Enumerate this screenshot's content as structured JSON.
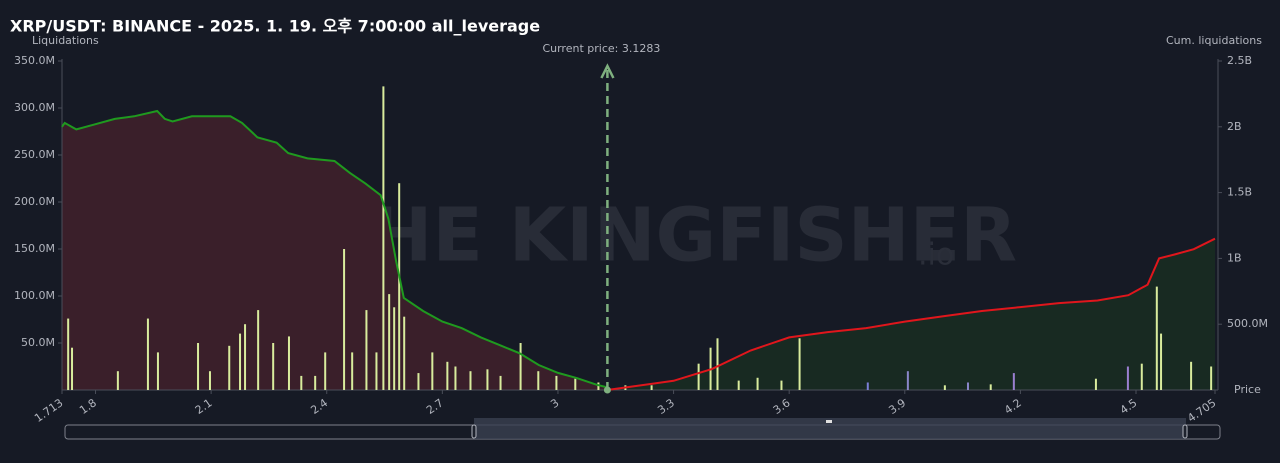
{
  "chart_data": {
    "type": "bar",
    "title": "XRP/USDT: BINANCE - 2025. 1. 19. 오후 7:00:00 all_leverage",
    "y_label": "Liquidations",
    "y2_label": "Cum. liquidations",
    "x_label": "Price",
    "watermark": "THE KINGFISHER",
    "watermark_suffix": ".io",
    "xlim": [
      1.713,
      4.705
    ],
    "xticks": [
      1.713,
      1.8,
      2.1,
      2.4,
      2.7,
      3,
      3.3,
      3.6,
      3.9,
      4.2,
      4.5,
      4.705
    ],
    "ylim": [
      0,
      350000000
    ],
    "yticks": [
      {
        "value": 50000000,
        "label": "50.0M"
      },
      {
        "value": 100000000,
        "label": "100.0M"
      },
      {
        "value": 150000000,
        "label": "150.0M"
      },
      {
        "value": 200000000,
        "label": "200.0M"
      },
      {
        "value": 250000000,
        "label": "250.0M"
      },
      {
        "value": 300000000,
        "label": "300.0M"
      },
      {
        "value": 350000000,
        "label": "350.0M"
      }
    ],
    "y2lim": [
      0,
      2500000000
    ],
    "y2ticks": [
      {
        "value": 500000000,
        "label": "500.0M"
      },
      {
        "value": 1000000000,
        "label": "1B"
      },
      {
        "value": 1500000000,
        "label": "1.5B"
      },
      {
        "value": 2000000000,
        "label": "2B"
      },
      {
        "value": 2500000000,
        "label": "2.5B"
      }
    ],
    "current_price": {
      "value": 3.1283,
      "label": "Current price: 3.1283",
      "color": "#7fb07f"
    },
    "bars": {
      "x": [
        1.729,
        1.739,
        1.858,
        1.936,
        1.962,
        2.066,
        2.097,
        2.147,
        2.175,
        2.188,
        2.222,
        2.261,
        2.302,
        2.334,
        2.37,
        2.396,
        2.445,
        2.466,
        2.503,
        2.529,
        2.547,
        2.562,
        2.575,
        2.588,
        2.601,
        2.638,
        2.674,
        2.713,
        2.734,
        2.773,
        2.817,
        2.851,
        2.903,
        2.949,
        2.996,
        3.045,
        3.105,
        3.175,
        3.243,
        3.365,
        3.396,
        3.414,
        3.469,
        3.518,
        3.58,
        3.627,
        3.804,
        3.908,
        4.004,
        4.064,
        4.123,
        4.183,
        4.396,
        4.479,
        4.515,
        4.554,
        4.565,
        4.643,
        4.695
      ],
      "values": [
        76000000,
        45000000,
        20000000,
        76000000,
        40000000,
        50000000,
        20000000,
        47000000,
        60000000,
        70000000,
        85000000,
        50000000,
        57000000,
        15000000,
        15000000,
        40000000,
        150000000,
        40000000,
        85000000,
        40000000,
        323000000,
        102000000,
        88000000,
        220000000,
        78000000,
        18000000,
        40000000,
        30000000,
        25000000,
        20000000,
        22000000,
        15000000,
        50000000,
        20000000,
        15000000,
        12000000,
        8000000,
        5000000,
        5000000,
        28000000,
        45000000,
        55000000,
        10000000,
        13000000,
        10000000,
        55000000,
        8000000,
        20000000,
        5000000,
        8000000,
        6000000,
        18000000,
        12000000,
        25000000,
        28000000,
        110000000,
        60000000,
        30000000,
        25000000
      ],
      "colors": [
        "#d9ec9d",
        "#d9ec9d",
        "#d9ec9d",
        "#d9ec9d",
        "#d9ec9d",
        "#d9ec9d",
        "#d9ec9d",
        "#d9ec9d",
        "#d9ec9d",
        "#d9ec9d",
        "#d9ec9d",
        "#d9ec9d",
        "#d9ec9d",
        "#d9ec9d",
        "#d9ec9d",
        "#d9ec9d",
        "#d9ec9d",
        "#d9ec9d",
        "#d9ec9d",
        "#d9ec9d",
        "#d9ec9d",
        "#d9ec9d",
        "#d9ec9d",
        "#d9ec9d",
        "#d9ec9d",
        "#d9ec9d",
        "#d9ec9d",
        "#d9ec9d",
        "#d9ec9d",
        "#d9ec9d",
        "#d9ec9d",
        "#d9ec9d",
        "#d9ec9d",
        "#d9ec9d",
        "#d9ec9d",
        "#d9ec9d",
        "#d9ec9d",
        "#d9ec9d",
        "#d9ec9d",
        "#d9ec9d",
        "#d9ec9d",
        "#d9ec9d",
        "#d9ec9d",
        "#d9ec9d",
        "#d9ec9d",
        "#d9ec9d",
        "#7b7fd6",
        "#8a86c9",
        "#d9ec9d",
        "#8a86c9",
        "#d9ec9d",
        "#9a7fd0",
        "#d9ec9d",
        "#9a7fd0",
        "#d9ec9d",
        "#d9ec9d",
        "#d9ec9d",
        "#d9ec9d",
        "#d9ec9d"
      ]
    },
    "long_cum": {
      "color": "#1f9a1f",
      "fill": "#3a1f2a",
      "x": [
        1.713,
        1.72,
        1.75,
        1.8,
        1.85,
        1.9,
        1.96,
        1.98,
        2.0,
        2.05,
        2.1,
        2.15,
        2.18,
        2.22,
        2.27,
        2.3,
        2.35,
        2.42,
        2.46,
        2.5,
        2.54,
        2.56,
        2.58,
        2.6,
        2.65,
        2.7,
        2.75,
        2.8,
        2.85,
        2.9,
        2.95,
        3.0,
        3.05,
        3.1,
        3.128
      ],
      "values": [
        2000000000,
        2030000000,
        1980000000,
        2020000000,
        2060000000,
        2080000000,
        2120000000,
        2060000000,
        2040000000,
        2080000000,
        2080000000,
        2080000000,
        2030000000,
        1920000000,
        1880000000,
        1800000000,
        1760000000,
        1740000000,
        1650000000,
        1570000000,
        1480000000,
        1300000000,
        980000000,
        700000000,
        600000000,
        520000000,
        470000000,
        400000000,
        340000000,
        280000000,
        190000000,
        130000000,
        90000000,
        40000000,
        20000000
      ]
    },
    "short_cum": {
      "color": "#e0161c",
      "fill": "#182a22",
      "x": [
        3.128,
        3.2,
        3.3,
        3.4,
        3.5,
        3.6,
        3.7,
        3.8,
        3.9,
        4.0,
        4.1,
        4.2,
        4.3,
        4.4,
        4.48,
        4.53,
        4.56,
        4.6,
        4.65,
        4.705
      ],
      "values": [
        0,
        30000000,
        70000000,
        160000000,
        300000000,
        400000000,
        440000000,
        470000000,
        520000000,
        560000000,
        600000000,
        630000000,
        660000000,
        680000000,
        720000000,
        800000000,
        1000000000,
        1030000000,
        1070000000,
        1150000000
      ]
    }
  }
}
